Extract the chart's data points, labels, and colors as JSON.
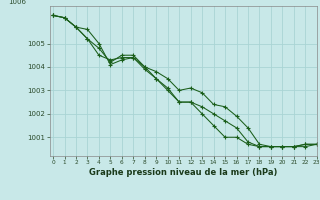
{
  "xlabel": "Graphe pression niveau de la mer (hPa)",
  "background_color": "#c8e8e8",
  "grid_color": "#aad4d4",
  "line_color": "#1a5e1a",
  "ylim": [
    1000.2,
    1006.6
  ],
  "xlim": [
    -0.3,
    23
  ],
  "yticks": [
    1001,
    1002,
    1003,
    1004,
    1005
  ],
  "ytick_label_top": "1006",
  "xticks": [
    0,
    1,
    2,
    3,
    4,
    5,
    6,
    7,
    8,
    9,
    10,
    11,
    12,
    13,
    14,
    15,
    16,
    17,
    18,
    19,
    20,
    21,
    22,
    23
  ],
  "series": [
    [
      1006.2,
      1006.1,
      1005.7,
      1005.6,
      1005.0,
      1004.1,
      1004.3,
      1004.4,
      1004.0,
      1003.8,
      1003.5,
      1003.0,
      1003.1,
      1002.9,
      1002.4,
      1002.3,
      1001.9,
      1001.4,
      1000.7,
      1000.6,
      1000.6,
      1000.6,
      1000.7,
      1000.7
    ],
    [
      1006.2,
      1006.1,
      1005.7,
      1005.2,
      1004.5,
      1004.3,
      1004.4,
      1004.4,
      1003.9,
      1003.5,
      1003.1,
      1002.5,
      1002.5,
      1002.3,
      1002.0,
      1001.7,
      1001.4,
      1000.8,
      1000.6,
      1000.6,
      1000.6,
      1000.6,
      1000.7,
      1000.7
    ],
    [
      1006.2,
      1006.1,
      1005.7,
      1005.2,
      1004.8,
      1004.2,
      1004.5,
      1004.5,
      1004.0,
      1003.5,
      1003.0,
      1002.5,
      1002.5,
      1002.0,
      1001.5,
      1001.0,
      1001.0,
      1000.7,
      1000.6,
      1000.6,
      1000.6,
      1000.6,
      1000.6,
      1000.7
    ]
  ]
}
